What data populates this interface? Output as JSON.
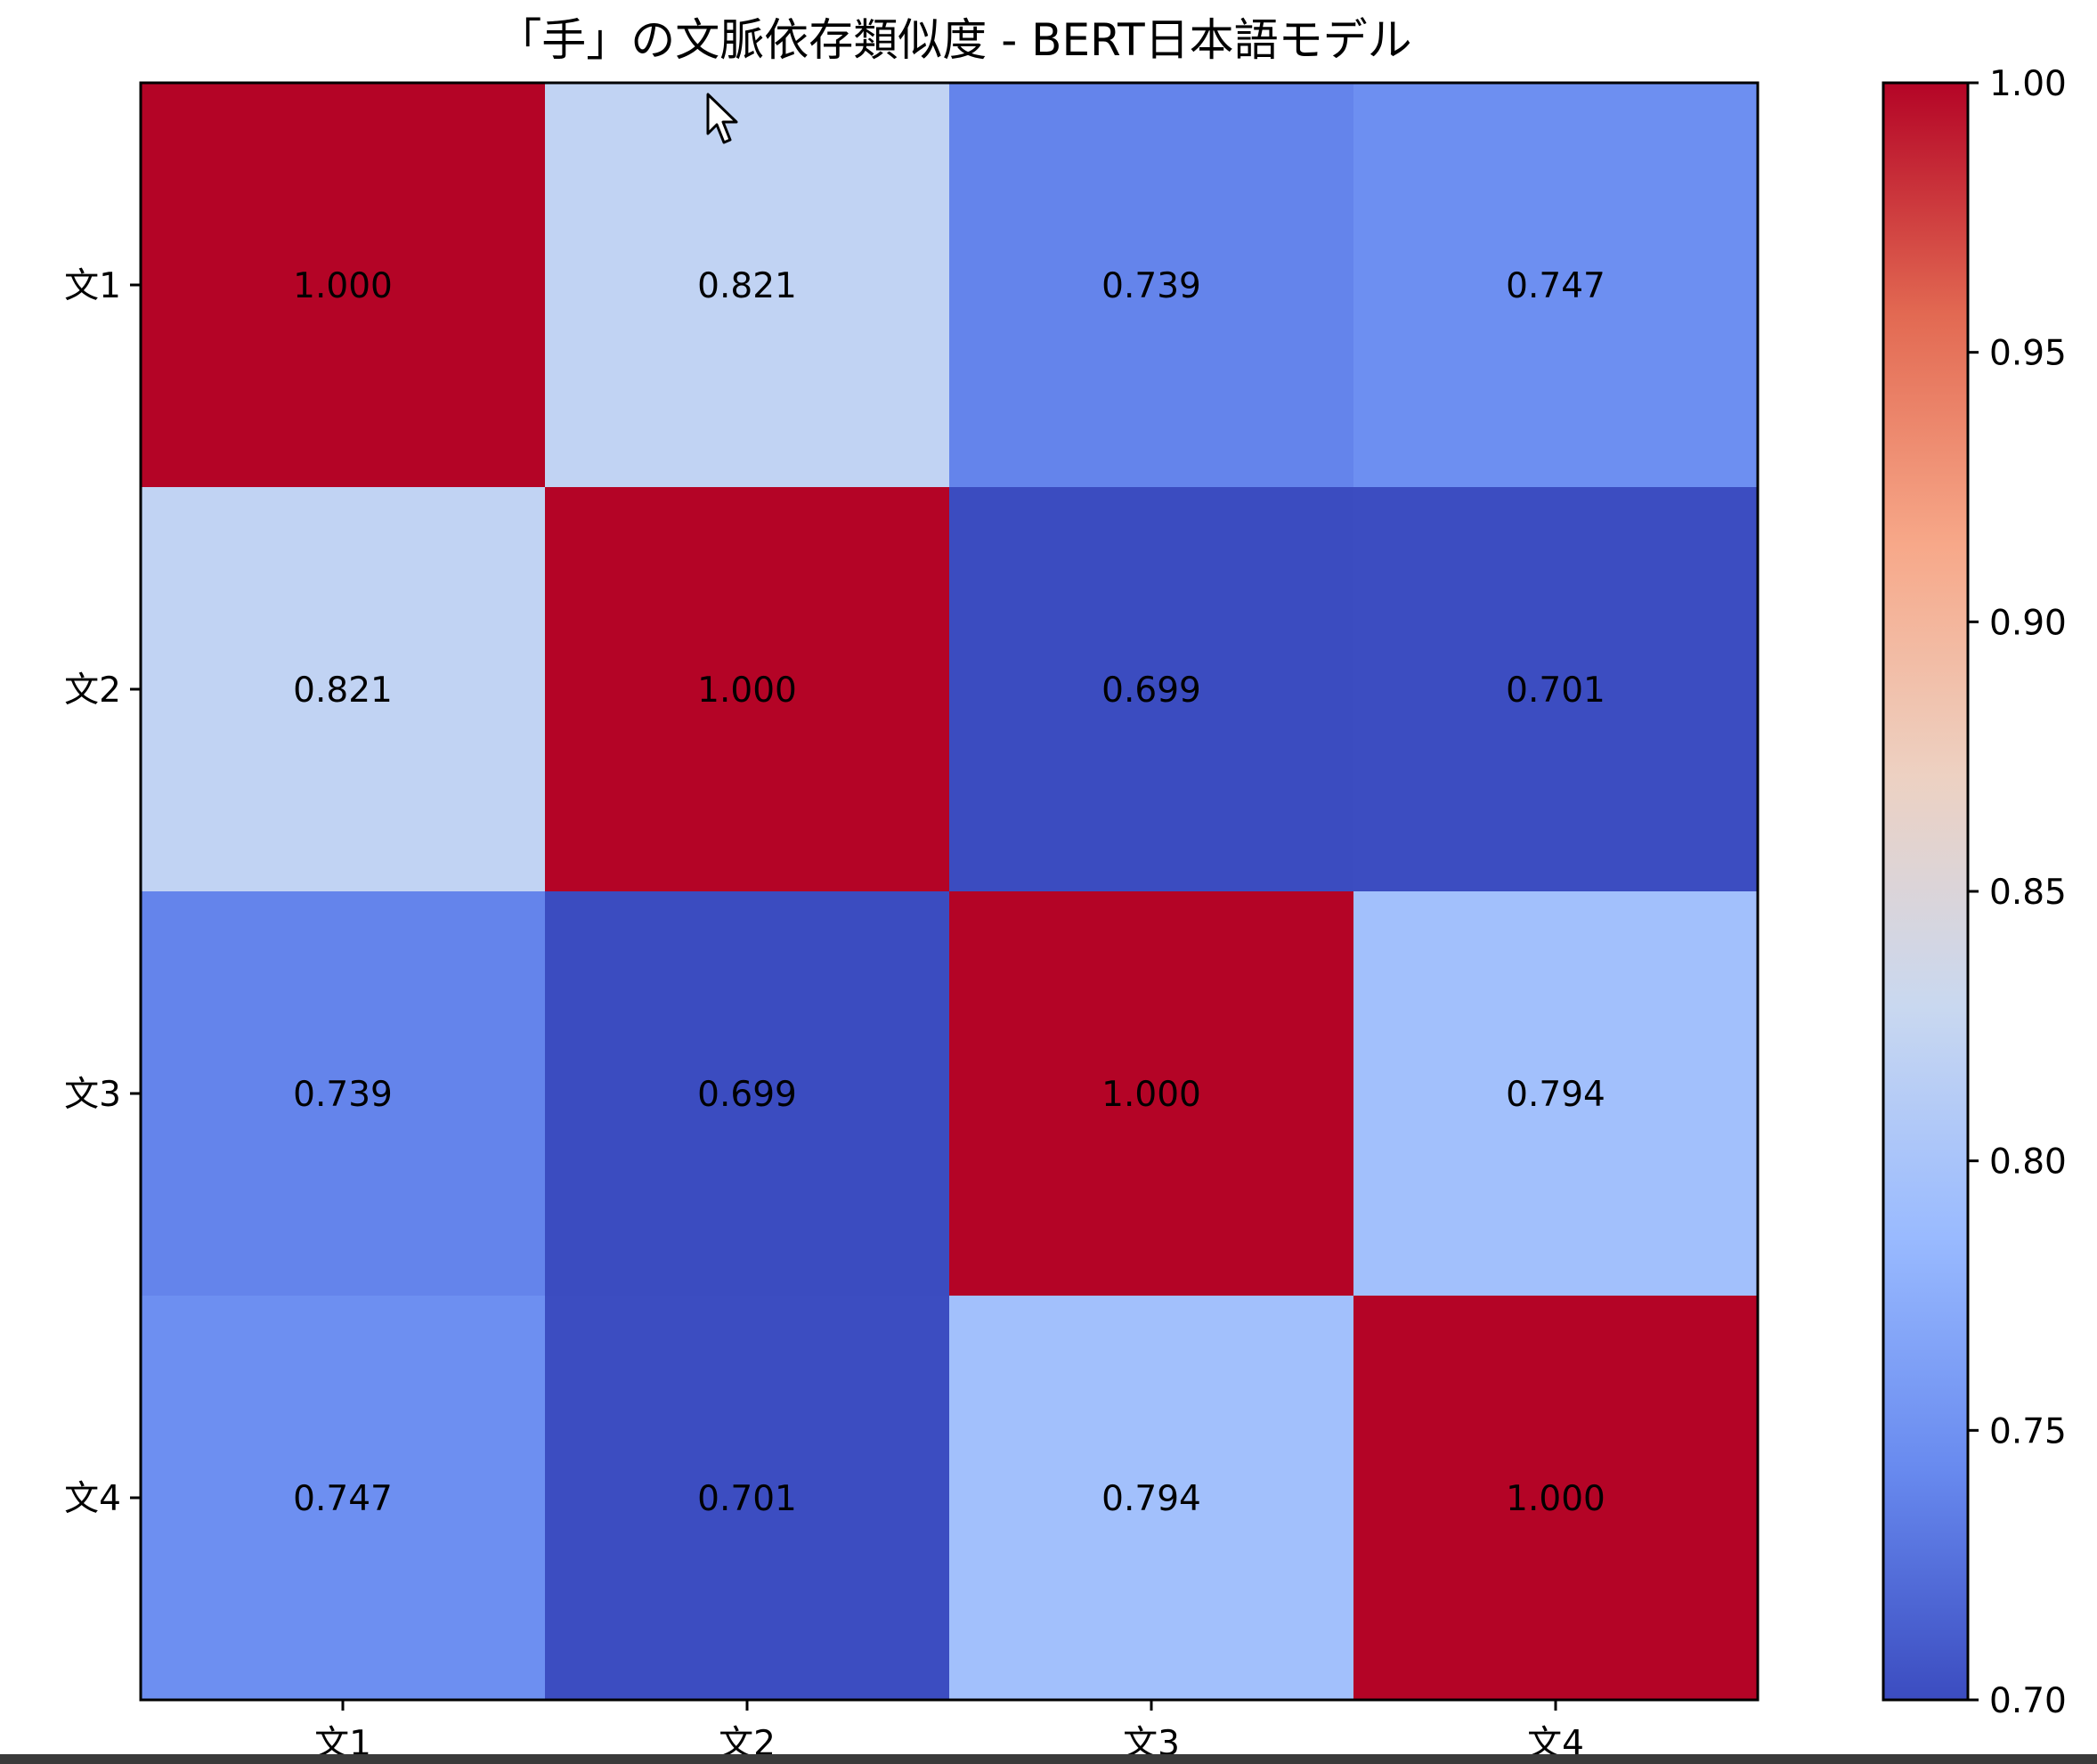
{
  "chart_data": {
    "type": "heatmap",
    "title": "「手」の文脈依存類似度 - BERT日本語モデル",
    "x_categories": [
      "文1",
      "文2",
      "文3",
      "文4"
    ],
    "y_categories": [
      "文1",
      "文2",
      "文3",
      "文4"
    ],
    "values": [
      [
        1.0,
        0.821,
        0.739,
        0.747
      ],
      [
        0.821,
        1.0,
        0.699,
        0.701
      ],
      [
        0.739,
        0.699,
        1.0,
        0.794
      ],
      [
        0.747,
        0.701,
        0.794,
        1.0
      ]
    ],
    "value_labels": [
      [
        "1.000",
        "0.821",
        "0.739",
        "0.747"
      ],
      [
        "0.821",
        "1.000",
        "0.699",
        "0.701"
      ],
      [
        "0.739",
        "0.699",
        "1.000",
        "0.794"
      ],
      [
        "0.747",
        "0.701",
        "0.794",
        "1.000"
      ]
    ],
    "colormap": "coolwarm",
    "vmin": 0.7,
    "vmax": 1.0,
    "colorbar_ticks": [
      "0.70",
      "0.75",
      "0.80",
      "0.85",
      "0.90",
      "0.95",
      "1.00"
    ],
    "colorbar_tick_values": [
      0.7,
      0.75,
      0.8,
      0.85,
      0.9,
      0.95,
      1.0
    ],
    "colorbar_stops": [
      "#3b4cc0",
      "#688aef",
      "#99baff",
      "#c9d8f0",
      "#edd1c2",
      "#f7a889",
      "#e26952",
      "#b40426"
    ]
  }
}
